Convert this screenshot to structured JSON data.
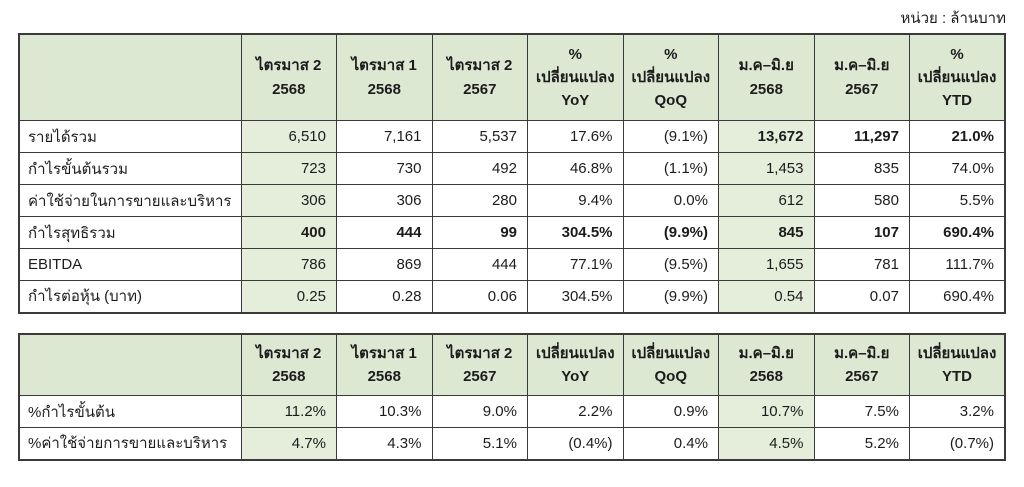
{
  "unit_label": "หน่วย : ล้านบาท",
  "colors": {
    "header_bg": "#dce8d2",
    "highlight_bg": "#e4eedb",
    "border": "#3a3a3a",
    "text": "#1c1c1c"
  },
  "tables": [
    {
      "name": "income-statement-table",
      "columns": [
        "ไตรมาส 2\n2568",
        "ไตรมาส 1\n2568",
        "ไตรมาส 2\n2567",
        "%\nเปลี่ยนแปลง\nYoY",
        "%\nเปลี่ยนแปลง\nQoQ",
        "ม.ค–มิ.ย\n2568",
        "ม.ค–มิ.ย\n2567",
        "%\nเปลี่ยนแปลง\nYTD"
      ],
      "highlight_value_columns": [
        0,
        5
      ],
      "rows": [
        {
          "label": "รายได้รวม",
          "values": [
            "6,510",
            "7,161",
            "5,537",
            "17.6%",
            "(9.1%)",
            "13,672",
            "11,297",
            "21.0%"
          ],
          "bold_values": [
            5,
            6,
            7
          ]
        },
        {
          "label": "กำไรขั้นต้นรวม",
          "values": [
            "723",
            "730",
            "492",
            "46.8%",
            "(1.1%)",
            "1,453",
            "835",
            "74.0%"
          ],
          "bold_values": []
        },
        {
          "label": "ค่าใช้จ่ายในการขายและบริหาร",
          "values": [
            "306",
            "306",
            "280",
            "9.4%",
            "0.0%",
            "612",
            "580",
            "5.5%"
          ],
          "bold_values": []
        },
        {
          "label": "กำไรสุทธิรวม",
          "values": [
            "400",
            "444",
            "99",
            "304.5%",
            "(9.9%)",
            "845",
            "107",
            "690.4%"
          ],
          "bold_values": [
            0,
            1,
            2,
            3,
            4,
            5,
            6,
            7
          ]
        },
        {
          "label": "EBITDA",
          "values": [
            "786",
            "869",
            "444",
            "77.1%",
            "(9.5%)",
            "1,655",
            "781",
            "111.7%"
          ],
          "bold_values": []
        },
        {
          "label": "กำไรต่อหุ้น (บาท)",
          "values": [
            "0.25",
            "0.28",
            "0.06",
            "304.5%",
            "(9.9%)",
            "0.54",
            "0.07",
            "690.4%"
          ],
          "bold_values": []
        }
      ]
    },
    {
      "name": "margin-ratio-table",
      "columns": [
        "ไตรมาส 2\n2568",
        "ไตรมาส 1\n2568",
        "ไตรมาส 2\n2567",
        "เปลี่ยนแปลง\nYoY",
        "เปลี่ยนแปลง\nQoQ",
        "ม.ค–มิ.ย\n2568",
        "ม.ค–มิ.ย\n2567",
        "เปลี่ยนแปลง\nYTD"
      ],
      "highlight_value_columns": [
        0,
        5
      ],
      "rows": [
        {
          "label": "%กำไรขั้นต้น",
          "values": [
            "11.2%",
            "10.3%",
            "9.0%",
            "2.2%",
            "0.9%",
            "10.7%",
            "7.5%",
            "3.2%"
          ],
          "bold_values": []
        },
        {
          "label": "%ค่าใช้จ่ายการขายและบริหาร",
          "values": [
            "4.7%",
            "4.3%",
            "5.1%",
            "(0.4%)",
            "0.4%",
            "4.5%",
            "5.2%",
            "(0.7%)"
          ],
          "bold_values": []
        }
      ]
    }
  ]
}
